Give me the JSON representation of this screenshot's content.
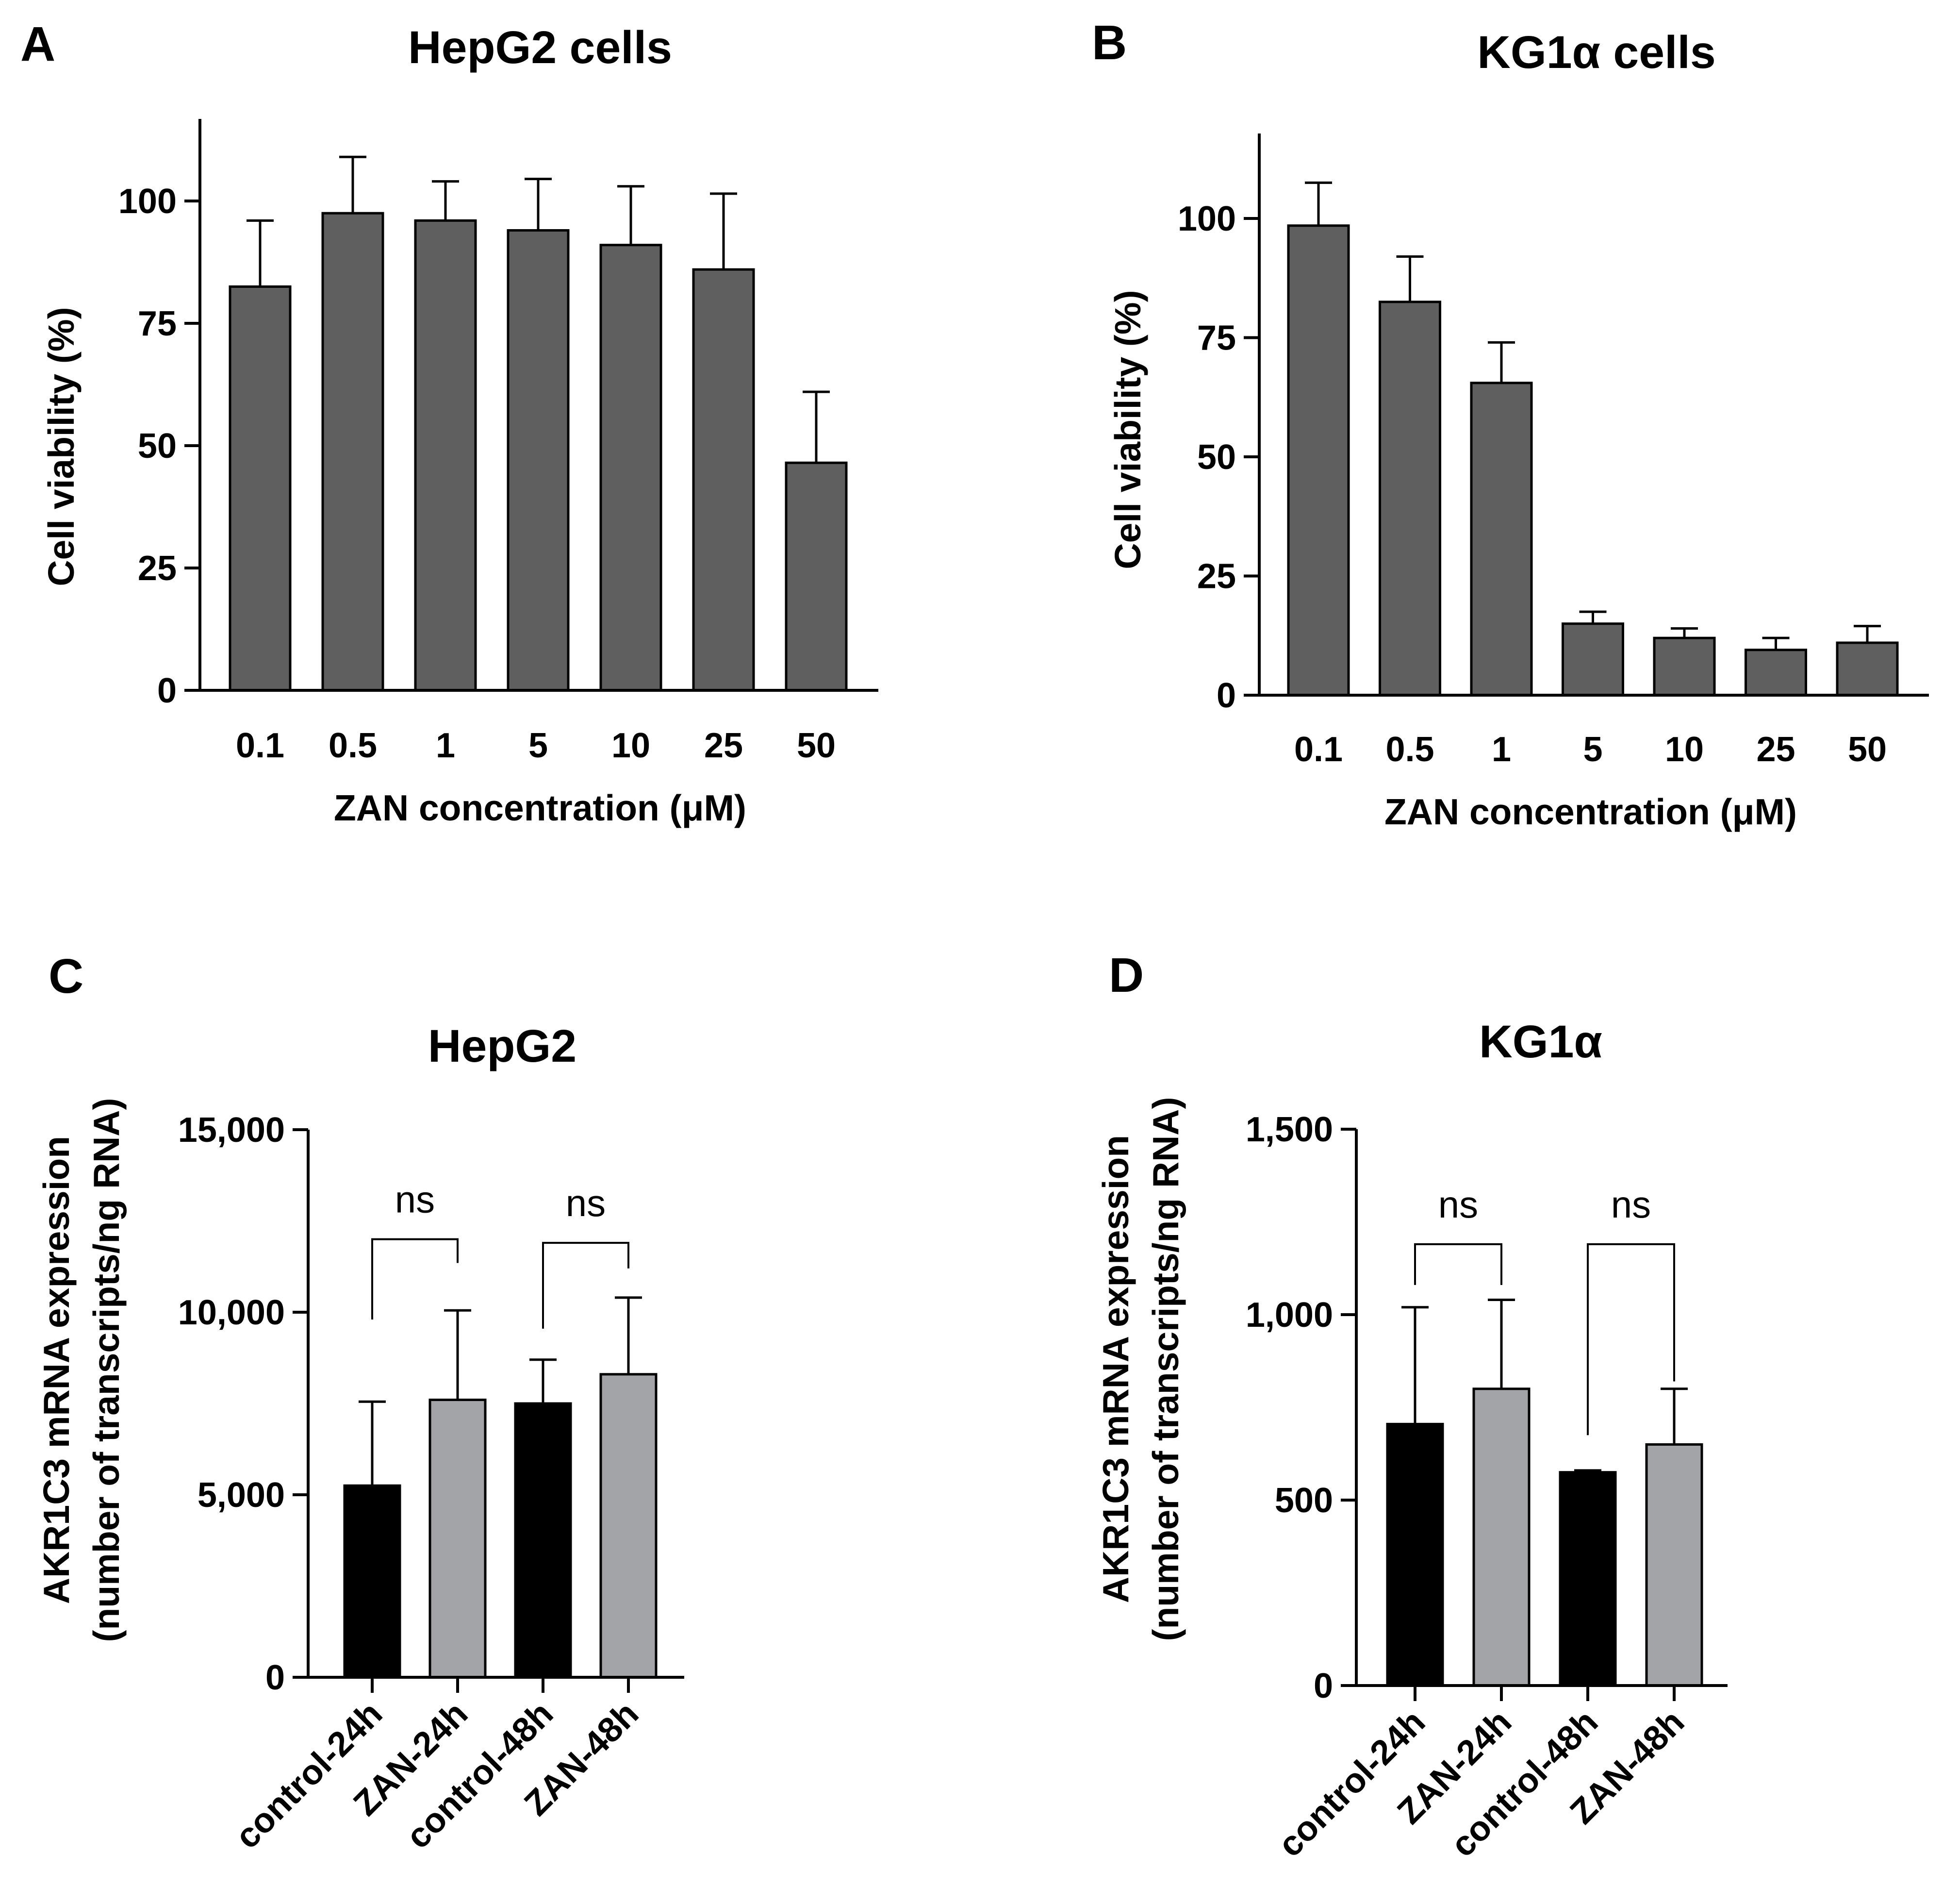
{
  "figure": {
    "panels": [
      "A",
      "B",
      "C",
      "D"
    ]
  },
  "chart_data": [
    {
      "panel": "A",
      "type": "bar",
      "title": "HepG2 cells",
      "xlabel": "ZAN concentration (μM)",
      "ylabel": "Cell viability (%)",
      "ylim": [
        0,
        115
      ],
      "yticks": [
        0,
        25,
        50,
        75,
        100
      ],
      "ytick_labels": [
        "0",
        "25",
        "50",
        "75",
        "100"
      ],
      "categories": [
        "0.1",
        "0.5",
        "1",
        "5",
        "10",
        "25",
        "50"
      ],
      "series": [
        {
          "name": "Cell viability",
          "values": [
            82.5,
            97.5,
            96,
            94,
            91,
            86,
            46.5
          ],
          "errors": [
            13.5,
            11.5,
            8,
            10.5,
            12,
            15.5,
            14.5
          ],
          "colors": [
            "#5f5f5f",
            "#5f5f5f",
            "#5f5f5f",
            "#5f5f5f",
            "#5f5f5f",
            "#5f5f5f",
            "#5f5f5f"
          ]
        }
      ],
      "annotations": []
    },
    {
      "panel": "B",
      "type": "bar",
      "title": "KG1α cells",
      "xlabel": "ZAN concentration (μM)",
      "ylabel": "Cell viability (%)",
      "ylim": [
        0,
        118
      ],
      "yticks": [
        0,
        25,
        50,
        75,
        100
      ],
      "ytick_labels": [
        "0",
        "25",
        "50",
        "75",
        "100"
      ],
      "categories": [
        "0.1",
        "0.5",
        "1",
        "5",
        "10",
        "25",
        "50"
      ],
      "series": [
        {
          "name": "Cell viability",
          "values": [
            98.5,
            82.5,
            65.5,
            15,
            12,
            9.5,
            11
          ],
          "errors": [
            9,
            9.5,
            8.5,
            2.5,
            2,
            2.5,
            3.5
          ],
          "colors": [
            "#5f5f5f",
            "#5f5f5f",
            "#5f5f5f",
            "#5f5f5f",
            "#5f5f5f",
            "#5f5f5f",
            "#5f5f5f"
          ]
        }
      ],
      "annotations": []
    },
    {
      "panel": "C",
      "type": "bar",
      "title": "HepG2",
      "xlabel": "",
      "ylabel": [
        "AKR1C3 mRNA expression",
        "(number of transcripts/ng RNA)"
      ],
      "ylim": [
        0,
        15000
      ],
      "yticks": [
        0,
        5000,
        10000,
        15000
      ],
      "ytick_labels": [
        "0",
        "5,000",
        "10,000",
        "15,000"
      ],
      "categories": [
        "control-24h",
        "ZAN-24h",
        "control-48h",
        "ZAN-48h"
      ],
      "series": [
        {
          "name": "AKR1C3 mRNA expression",
          "values": [
            5250,
            7600,
            7500,
            8300
          ],
          "errors": [
            2300,
            2450,
            1200,
            2100
          ],
          "colors": [
            "#000000",
            "#a3a4a8",
            "#000000",
            "#a3a4a8"
          ]
        }
      ],
      "annotations": [
        {
          "label": "ns",
          "from": 0,
          "to": 1,
          "y": 12000,
          "left_drop": 9800,
          "right_drop": 11350
        },
        {
          "label": "ns",
          "from": 2,
          "to": 3,
          "y": 11900,
          "left_drop": 9550,
          "right_drop": 11200
        }
      ]
    },
    {
      "panel": "D",
      "type": "bar",
      "title": "KG1α",
      "xlabel": "",
      "ylabel": [
        "AKR1C3 mRNA expression",
        "(number of transcripts/ng RNA)"
      ],
      "ylim": [
        0,
        1500
      ],
      "yticks": [
        0,
        500,
        1000,
        1500
      ],
      "ytick_labels": [
        "0",
        "500",
        "1,000",
        "1,500"
      ],
      "categories": [
        "control-24h",
        "ZAN-24h",
        "control-48h",
        "ZAN-48h"
      ],
      "series": [
        {
          "name": "AKR1C3 mRNA expression",
          "values": [
            705,
            800,
            575,
            650
          ],
          "errors": [
            315,
            240,
            5,
            150
          ],
          "colors": [
            "#000000",
            "#a3a4a8",
            "#000000",
            "#a3a4a8"
          ]
        }
      ],
      "annotations": [
        {
          "label": "ns",
          "from": 0,
          "to": 1,
          "y": 1190,
          "left_drop": 1080,
          "right_drop": 1080
        },
        {
          "label": "ns",
          "from": 2,
          "to": 3,
          "y": 1190,
          "left_drop": 675,
          "right_drop": 820
        }
      ]
    }
  ]
}
